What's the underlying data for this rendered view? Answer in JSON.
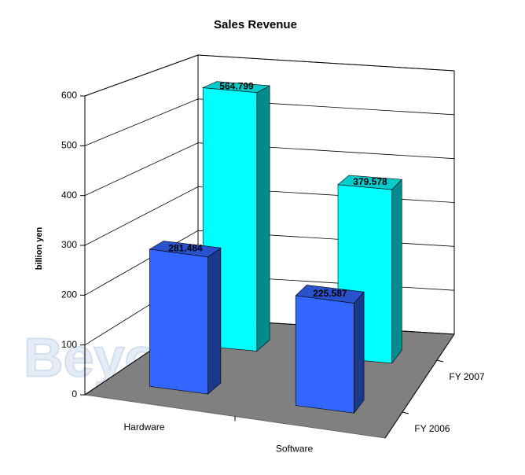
{
  "watermark": "Beyond3D",
  "chart_data": {
    "type": "bar3d",
    "title": "Sales Revenue",
    "y_label": "billion yen",
    "categories": [
      "Hardware",
      "Software"
    ],
    "series": [
      {
        "name": "FY 2006",
        "color": "#3366ff",
        "values": [
          281.484,
          225.587
        ]
      },
      {
        "name": "FY 2007",
        "color": "#00ffff",
        "values": [
          564.799,
          379.578
        ]
      }
    ],
    "ylim": [
      0,
      600
    ],
    "yticks": [
      0,
      100,
      200,
      300,
      400,
      500,
      600
    ],
    "grid": true
  }
}
